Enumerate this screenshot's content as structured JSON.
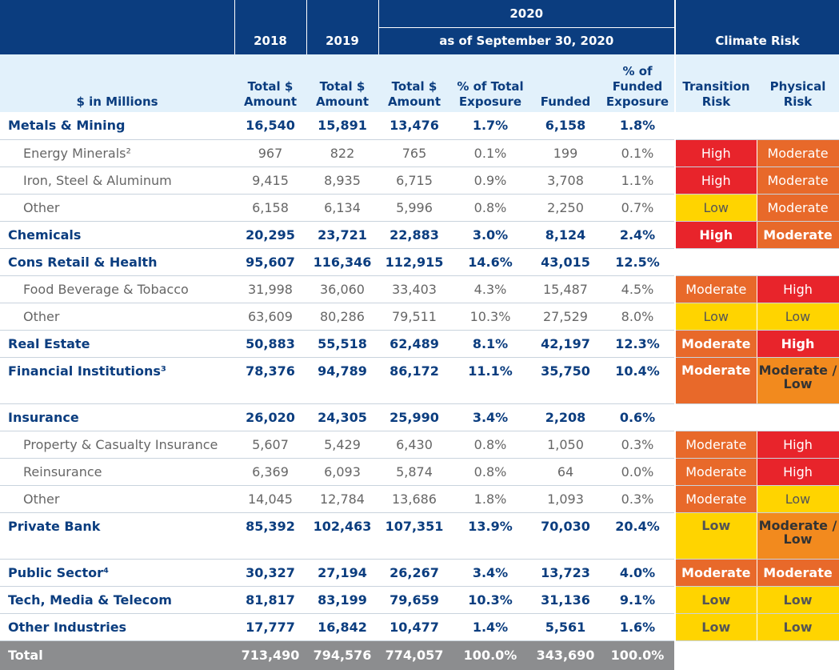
{
  "header": {
    "year_2018": "2018",
    "year_2019": "2019",
    "year_2020": "2020",
    "as_of": "as of September 30, 2020",
    "climate_risk": "Climate Risk",
    "units": "$ in Millions",
    "col_total_2018": "Total $ Amount",
    "col_total_2019": "Total $ Amount",
    "col_total_2020": "Total $ Amount",
    "col_pct_total": "% of Total Exposure",
    "col_funded": "Funded",
    "col_pct_funded": "% of Funded Exposure",
    "col_transition": "Transition Risk",
    "col_physical": "Physical Risk"
  },
  "rows": [
    {
      "label": "Metals & Mining",
      "v2018": "16,540",
      "v2019": "15,891",
      "v2020": "13,476",
      "pct_total": "1.7%",
      "funded": "6,158",
      "pct_funded": "1.8%",
      "transition": "",
      "physical": ""
    },
    {
      "label": "Energy Minerals²",
      "v2018": "967",
      "v2019": "822",
      "v2020": "765",
      "pct_total": "0.1%",
      "funded": "199",
      "pct_funded": "0.1%",
      "transition": "High",
      "physical": "Moderate"
    },
    {
      "label": "Iron, Steel & Aluminum",
      "v2018": "9,415",
      "v2019": "8,935",
      "v2020": "6,715",
      "pct_total": "0.9%",
      "funded": "3,708",
      "pct_funded": "1.1%",
      "transition": "High",
      "physical": "Moderate"
    },
    {
      "label": "Other",
      "v2018": "6,158",
      "v2019": "6,134",
      "v2020": "5,996",
      "pct_total": "0.8%",
      "funded": "2,250",
      "pct_funded": "0.7%",
      "transition": "Low",
      "physical": "Moderate"
    },
    {
      "label": "Chemicals",
      "v2018": "20,295",
      "v2019": "23,721",
      "v2020": "22,883",
      "pct_total": "3.0%",
      "funded": "8,124",
      "pct_funded": "2.4%",
      "transition": "High",
      "physical": "Moderate"
    },
    {
      "label": "Cons Retail & Health",
      "v2018": "95,607",
      "v2019": "116,346",
      "v2020": "112,915",
      "pct_total": "14.6%",
      "funded": "43,015",
      "pct_funded": "12.5%",
      "transition": "",
      "physical": ""
    },
    {
      "label": "Food Beverage & Tobacco",
      "v2018": "31,998",
      "v2019": "36,060",
      "v2020": "33,403",
      "pct_total": "4.3%",
      "funded": "15,487",
      "pct_funded": "4.5%",
      "transition": "Moderate",
      "physical": "High"
    },
    {
      "label": "Other",
      "v2018": "63,609",
      "v2019": "80,286",
      "v2020": "79,511",
      "pct_total": "10.3%",
      "funded": "27,529",
      "pct_funded": "8.0%",
      "transition": "Low",
      "physical": "Low"
    },
    {
      "label": "Real Estate",
      "v2018": "50,883",
      "v2019": "55,518",
      "v2020": "62,489",
      "pct_total": "8.1%",
      "funded": "42,197",
      "pct_funded": "12.3%",
      "transition": "Moderate",
      "physical": "High"
    },
    {
      "label": "Financial Institutions³",
      "v2018": "78,376",
      "v2019": "94,789",
      "v2020": "86,172",
      "pct_total": "11.1%",
      "funded": "35,750",
      "pct_funded": "10.4%",
      "transition": "Moderate",
      "physical": "Moderate / Low"
    },
    {
      "label": "Insurance",
      "v2018": "26,020",
      "v2019": "24,305",
      "v2020": "25,990",
      "pct_total": "3.4%",
      "funded": "2,208",
      "pct_funded": "0.6%",
      "transition": "",
      "physical": ""
    },
    {
      "label": "Property & Casualty Insurance",
      "v2018": "5,607",
      "v2019": "5,429",
      "v2020": "6,430",
      "pct_total": "0.8%",
      "funded": "1,050",
      "pct_funded": "0.3%",
      "transition": "Moderate",
      "physical": "High"
    },
    {
      "label": "Reinsurance",
      "v2018": "6,369",
      "v2019": "6,093",
      "v2020": "5,874",
      "pct_total": "0.8%",
      "funded": "64",
      "pct_funded": "0.0%",
      "transition": "Moderate",
      "physical": "High"
    },
    {
      "label": "Other",
      "v2018": "14,045",
      "v2019": "12,784",
      "v2020": "13,686",
      "pct_total": "1.8%",
      "funded": "1,093",
      "pct_funded": "0.3%",
      "transition": "Moderate",
      "physical": "Low"
    },
    {
      "label": "Private Bank",
      "v2018": "85,392",
      "v2019": "102,463",
      "v2020": "107,351",
      "pct_total": "13.9%",
      "funded": "70,030",
      "pct_funded": "20.4%",
      "transition": "Low",
      "physical": "Moderate / Low"
    },
    {
      "label": "Public Sector⁴",
      "v2018": "30,327",
      "v2019": "27,194",
      "v2020": "26,267",
      "pct_total": "3.4%",
      "funded": "13,723",
      "pct_funded": "4.0%",
      "transition": "Moderate",
      "physical": "Moderate"
    },
    {
      "label": "Tech, Media & Telecom",
      "v2018": "81,817",
      "v2019": "83,199",
      "v2020": "79,659",
      "pct_total": "10.3%",
      "funded": "31,136",
      "pct_funded": "9.1%",
      "transition": "Low",
      "physical": "Low"
    },
    {
      "label": "Other Industries",
      "v2018": "17,777",
      "v2019": "16,842",
      "v2020": "10,477",
      "pct_total": "1.4%",
      "funded": "5,561",
      "pct_funded": "1.6%",
      "transition": "Low",
      "physical": "Low"
    }
  ],
  "row_styles": [
    "bold",
    "sub",
    "sub",
    "sub",
    "bold",
    "bold",
    "sub",
    "sub",
    "bold",
    "bold-tall",
    "bold",
    "sub",
    "sub",
    "sub",
    "bold-tall",
    "bold",
    "bold",
    "bold"
  ],
  "total": {
    "label": "Total",
    "v2018": "713,490",
    "v2019": "794,576",
    "v2020": "774,057",
    "pct_total": "100.0%",
    "funded": "343,690",
    "pct_funded": "100.0%"
  },
  "risk_colors": {
    "High": "#e8242b",
    "Moderate": "#e8692a",
    "Moderate / Low": "#f28a1e",
    "Low": "#ffd400"
  }
}
